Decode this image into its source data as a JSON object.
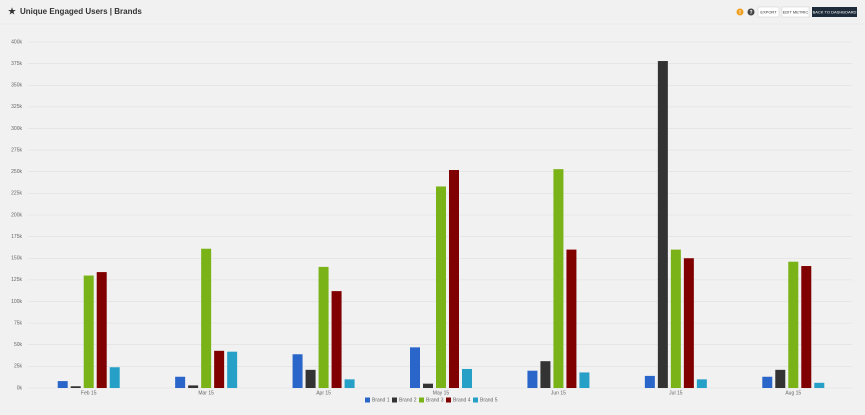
{
  "header": {
    "title": "Unique Engaged Users | Brands",
    "icons": [
      "!",
      "?"
    ],
    "buttons": [
      "EXPORT",
      "EDIT METRIC",
      "BACK TO DASHBOARD"
    ]
  },
  "chart_data": {
    "type": "bar",
    "categories": [
      "Feb 15",
      "Mar 15",
      "Apr 15",
      "May 15",
      "Jun 15",
      "Jul 15",
      "Aug 15"
    ],
    "series": [
      {
        "name": "Brand 1",
        "color": "#2a66c9",
        "values": [
          8000,
          13000,
          39000,
          47000,
          20000,
          14000,
          13000
        ]
      },
      {
        "name": "Brand 2",
        "color": "#333333",
        "values": [
          2000,
          3000,
          21000,
          5000,
          31000,
          378000,
          21000
        ]
      },
      {
        "name": "Brand 3",
        "color": "#7ab317",
        "values": [
          130000,
          161000,
          140000,
          233000,
          253000,
          160000,
          146000
        ]
      },
      {
        "name": "Brand 4",
        "color": "#800000",
        "values": [
          134000,
          43000,
          112000,
          252000,
          160000,
          150000,
          141000
        ]
      },
      {
        "name": "Brand 5",
        "color": "#27a0c8",
        "values": [
          24000,
          42000,
          10000,
          22000,
          18000,
          10000,
          6000
        ]
      }
    ],
    "ylim": [
      0,
      400000
    ],
    "yticks": [
      {
        "value": 0,
        "label": "0k"
      },
      {
        "value": 25000,
        "label": "25k"
      },
      {
        "value": 50000,
        "label": "50k"
      },
      {
        "value": 75000,
        "label": "75k"
      },
      {
        "value": 100000,
        "label": "100k"
      },
      {
        "value": 125000,
        "label": "125k"
      },
      {
        "value": 150000,
        "label": "150k"
      },
      {
        "value": 175000,
        "label": "175k"
      },
      {
        "value": 200000,
        "label": "200k"
      },
      {
        "value": 225000,
        "label": "225k"
      },
      {
        "value": 250000,
        "label": "250k"
      },
      {
        "value": 275000,
        "label": "275k"
      },
      {
        "value": 300000,
        "label": "300k"
      },
      {
        "value": 325000,
        "label": "325k"
      },
      {
        "value": 350000,
        "label": "350k"
      },
      {
        "value": 375000,
        "label": "375k"
      },
      {
        "value": 400000,
        "label": "400k"
      }
    ],
    "grid": true,
    "legend": "bottom"
  }
}
